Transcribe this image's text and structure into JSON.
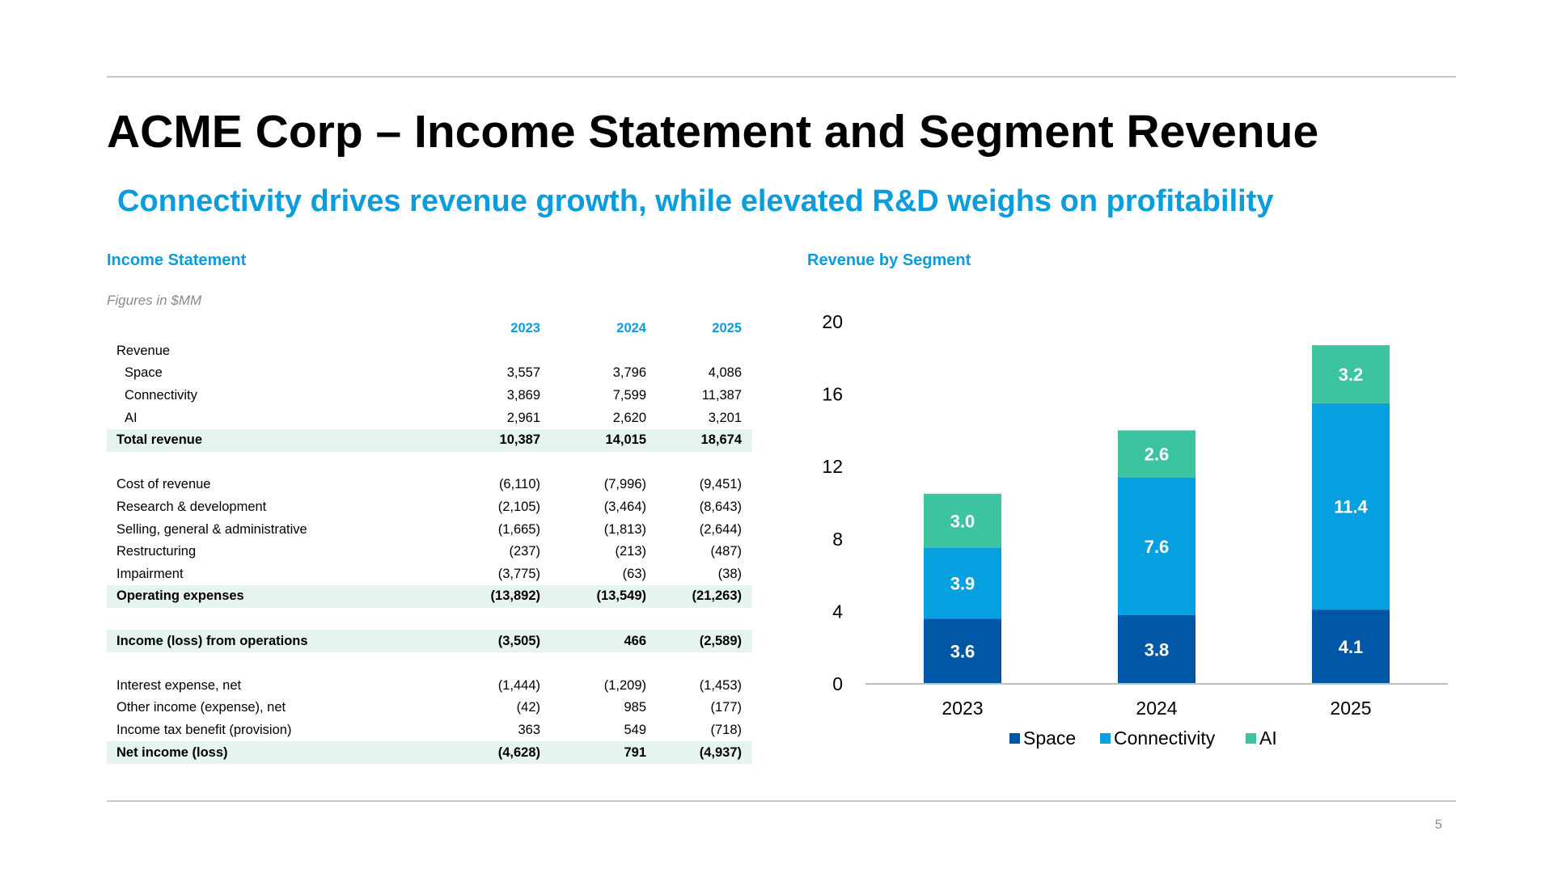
{
  "slide": {
    "title": "ACME Corp – Income Statement and Segment Revenue",
    "subtitle": "Connectivity drives revenue growth, while elevated R&D weighs on profitability",
    "page_number": "5"
  },
  "income_statement": {
    "title": "Income Statement",
    "note": "Figures in $MM",
    "years": [
      "2023",
      "2024",
      "2025"
    ],
    "rows": [
      {
        "label": "Revenue",
        "values": [
          "",
          "",
          ""
        ],
        "style": "plain"
      },
      {
        "label": "Space",
        "values": [
          "3,557",
          "3,796",
          "4,086"
        ],
        "style": "indent"
      },
      {
        "label": "Connectivity",
        "values": [
          "3,869",
          "7,599",
          "11,387"
        ],
        "style": "indent"
      },
      {
        "label": "AI",
        "values": [
          "2,961",
          "2,620",
          "3,201"
        ],
        "style": "indent"
      },
      {
        "label": "Total revenue",
        "values": [
          "10,387",
          "14,015",
          "18,674"
        ],
        "style": "total"
      },
      {
        "label": "",
        "values": [
          "",
          "",
          ""
        ],
        "style": "spacer"
      },
      {
        "label": "Cost of revenue",
        "values": [
          "(6,110)",
          "(7,996)",
          "(9,451)"
        ],
        "style": "plain"
      },
      {
        "label": "Research & development",
        "values": [
          "(2,105)",
          "(3,464)",
          "(8,643)"
        ],
        "style": "plain"
      },
      {
        "label": "Selling, general & administrative",
        "values": [
          "(1,665)",
          "(1,813)",
          "(2,644)"
        ],
        "style": "plain"
      },
      {
        "label": "Restructuring",
        "values": [
          "(237)",
          "(213)",
          "(487)"
        ],
        "style": "plain"
      },
      {
        "label": "Impairment",
        "values": [
          "(3,775)",
          "(63)",
          "(38)"
        ],
        "style": "plain"
      },
      {
        "label": "Operating expenses",
        "values": [
          "(13,892)",
          "(13,549)",
          "(21,263)"
        ],
        "style": "total"
      },
      {
        "label": "",
        "values": [
          "",
          "",
          ""
        ],
        "style": "spacer"
      },
      {
        "label": "Income (loss) from operations",
        "values": [
          "(3,505)",
          "466",
          "(2,589)"
        ],
        "style": "total"
      },
      {
        "label": "",
        "values": [
          "",
          "",
          ""
        ],
        "style": "spacer"
      },
      {
        "label": "Interest expense, net",
        "values": [
          "(1,444)",
          "(1,209)",
          "(1,453)"
        ],
        "style": "plain"
      },
      {
        "label": "Other income (expense), net",
        "values": [
          "(42)",
          "985",
          "(177)"
        ],
        "style": "plain"
      },
      {
        "label": "Income tax benefit (provision)",
        "values": [
          "363",
          "549",
          "(718)"
        ],
        "style": "plain"
      },
      {
        "label": "Net income (loss)",
        "values": [
          "(4,628)",
          "791",
          "(4,937)"
        ],
        "style": "total"
      }
    ]
  },
  "chart_data": {
    "type": "bar",
    "stacked": true,
    "title": "Revenue by Segment",
    "categories": [
      "2023",
      "2024",
      "2025"
    ],
    "series": [
      {
        "name": "Space",
        "values": [
          3.6,
          3.8,
          4.1
        ],
        "labels": [
          "3.6",
          "3.8",
          "4.1"
        ],
        "color": "#0057A6"
      },
      {
        "name": "Connectivity",
        "values": [
          3.9,
          7.6,
          11.4
        ],
        "labels": [
          "3.9",
          "7.6",
          "11.4"
        ],
        "color": "#069FE0"
      },
      {
        "name": "AI",
        "values": [
          3.0,
          2.6,
          3.2
        ],
        "labels": [
          "3.0",
          "2.6",
          "3.2"
        ],
        "color": "#3CC4A0"
      }
    ],
    "yticks": [
      0,
      4,
      8,
      12,
      16,
      20
    ],
    "ylim": [
      0,
      20
    ],
    "grid": false,
    "legend": "bottom",
    "data_label_color": "#ffffff"
  }
}
